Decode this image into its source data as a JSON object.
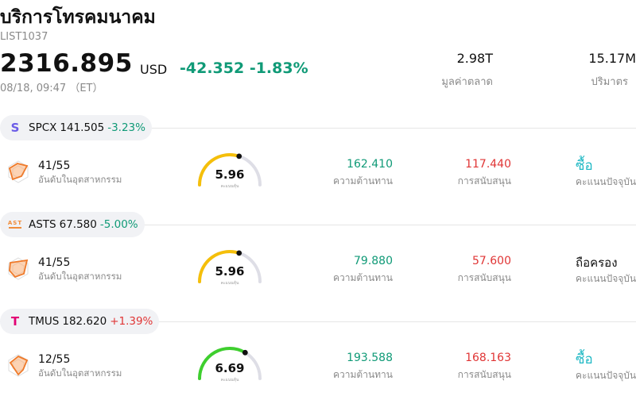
{
  "header": {
    "title": "บริการโทรคมนาคม",
    "code": "LIST1037",
    "price": "2316.895",
    "currency": "USD",
    "change": "-42.352 -1.83%",
    "time": "08/18, 09:47 （ET）",
    "market_cap_value": "2.98T",
    "market_cap_label": "มูลค่าตลาด",
    "volume_value": "15.17M",
    "volume_label": "ปริมาตร"
  },
  "colors": {
    "down": "#109a77",
    "up": "#e03535",
    "buy": "#1fb8c4",
    "gauge_yellow": "#f5bf0a",
    "gauge_green": "#3ecf2e"
  },
  "stocks": [
    {
      "logo_icon": "spcx-logo-icon",
      "logo_text": "S",
      "ticker": "SPCX",
      "price": "141.505",
      "change_pct": "-3.23%",
      "rank": "41/55",
      "rank_label": "อันดับในอุตสาหกรรม",
      "score": "5.96",
      "score_fraction": 0.6,
      "score_label": "คะแนนหุ้น",
      "resistance": "162.410",
      "resistance_label": "ความต้านทาน",
      "support": "117.440",
      "support_label": "การสนับสนุน",
      "rating": "ซื้อ",
      "rating_label": "คะแนนปัจจุบัน"
    },
    {
      "logo_icon": "asts-logo-icon",
      "logo_text": "AST",
      "ticker": "ASTS",
      "price": "67.580",
      "change_pct": "-5.00%",
      "rank": "41/55",
      "rank_label": "อันดับในอุตสาหกรรม",
      "score": "5.96",
      "score_fraction": 0.6,
      "score_label": "คะแนนหุ้น",
      "resistance": "79.880",
      "resistance_label": "ความต้านทาน",
      "support": "57.600",
      "support_label": "การสนับสนุน",
      "rating": "ถือครอง",
      "rating_label": "คะแนนปัจจุบัน"
    },
    {
      "logo_icon": "tmobile-logo-icon",
      "logo_text": "T",
      "ticker": "TMUS",
      "price": "182.620",
      "change_pct": "+1.39%",
      "rank": "12/55",
      "rank_label": "อันดับในอุตสาหกรรม",
      "score": "6.69",
      "score_fraction": 0.67,
      "score_label": "คะแนนหุ้น",
      "resistance": "193.588",
      "resistance_label": "ความต้านทาน",
      "support": "168.163",
      "support_label": "การสนับสนุน",
      "rating": "ซื้อ",
      "rating_label": "คะแนนปัจจุบัน"
    }
  ]
}
